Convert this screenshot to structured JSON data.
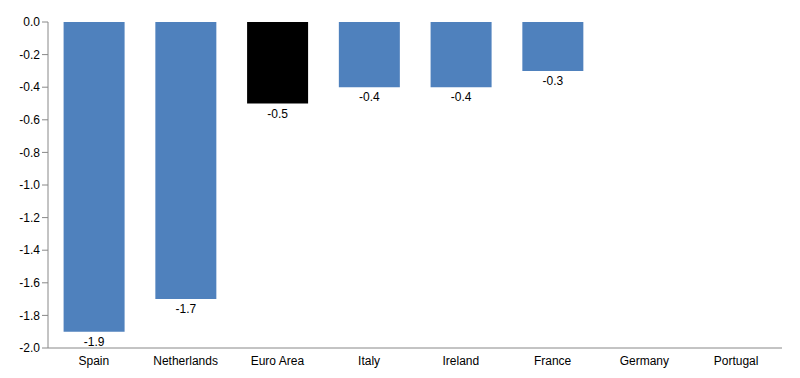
{
  "chart_data": {
    "type": "bar",
    "categories": [
      "Spain",
      "Netherlands",
      "Euro Area",
      "Italy",
      "Ireland",
      "France",
      "Germany",
      "Portugal"
    ],
    "values": [
      -1.9,
      -1.7,
      -0.5,
      -0.4,
      -0.4,
      -0.3,
      0,
      0
    ],
    "colors": [
      "#4f81bd",
      "#4f81bd",
      "#000000",
      "#4f81bd",
      "#4f81bd",
      "#4f81bd",
      "#4f81bd",
      "#4f81bd"
    ],
    "ylim": [
      -2.0,
      0.0
    ],
    "yticks": [
      {
        "value": 0,
        "label": "0.0"
      },
      -0.2,
      -0.4,
      -0.6,
      -0.8,
      {
        "value": -1.0,
        "label": "-1.0"
      },
      -1.2,
      -1.4,
      -1.6,
      -1.8,
      {
        "value": -2.0,
        "label": "-2.0"
      }
    ],
    "grid": false,
    "data_labels": true
  }
}
